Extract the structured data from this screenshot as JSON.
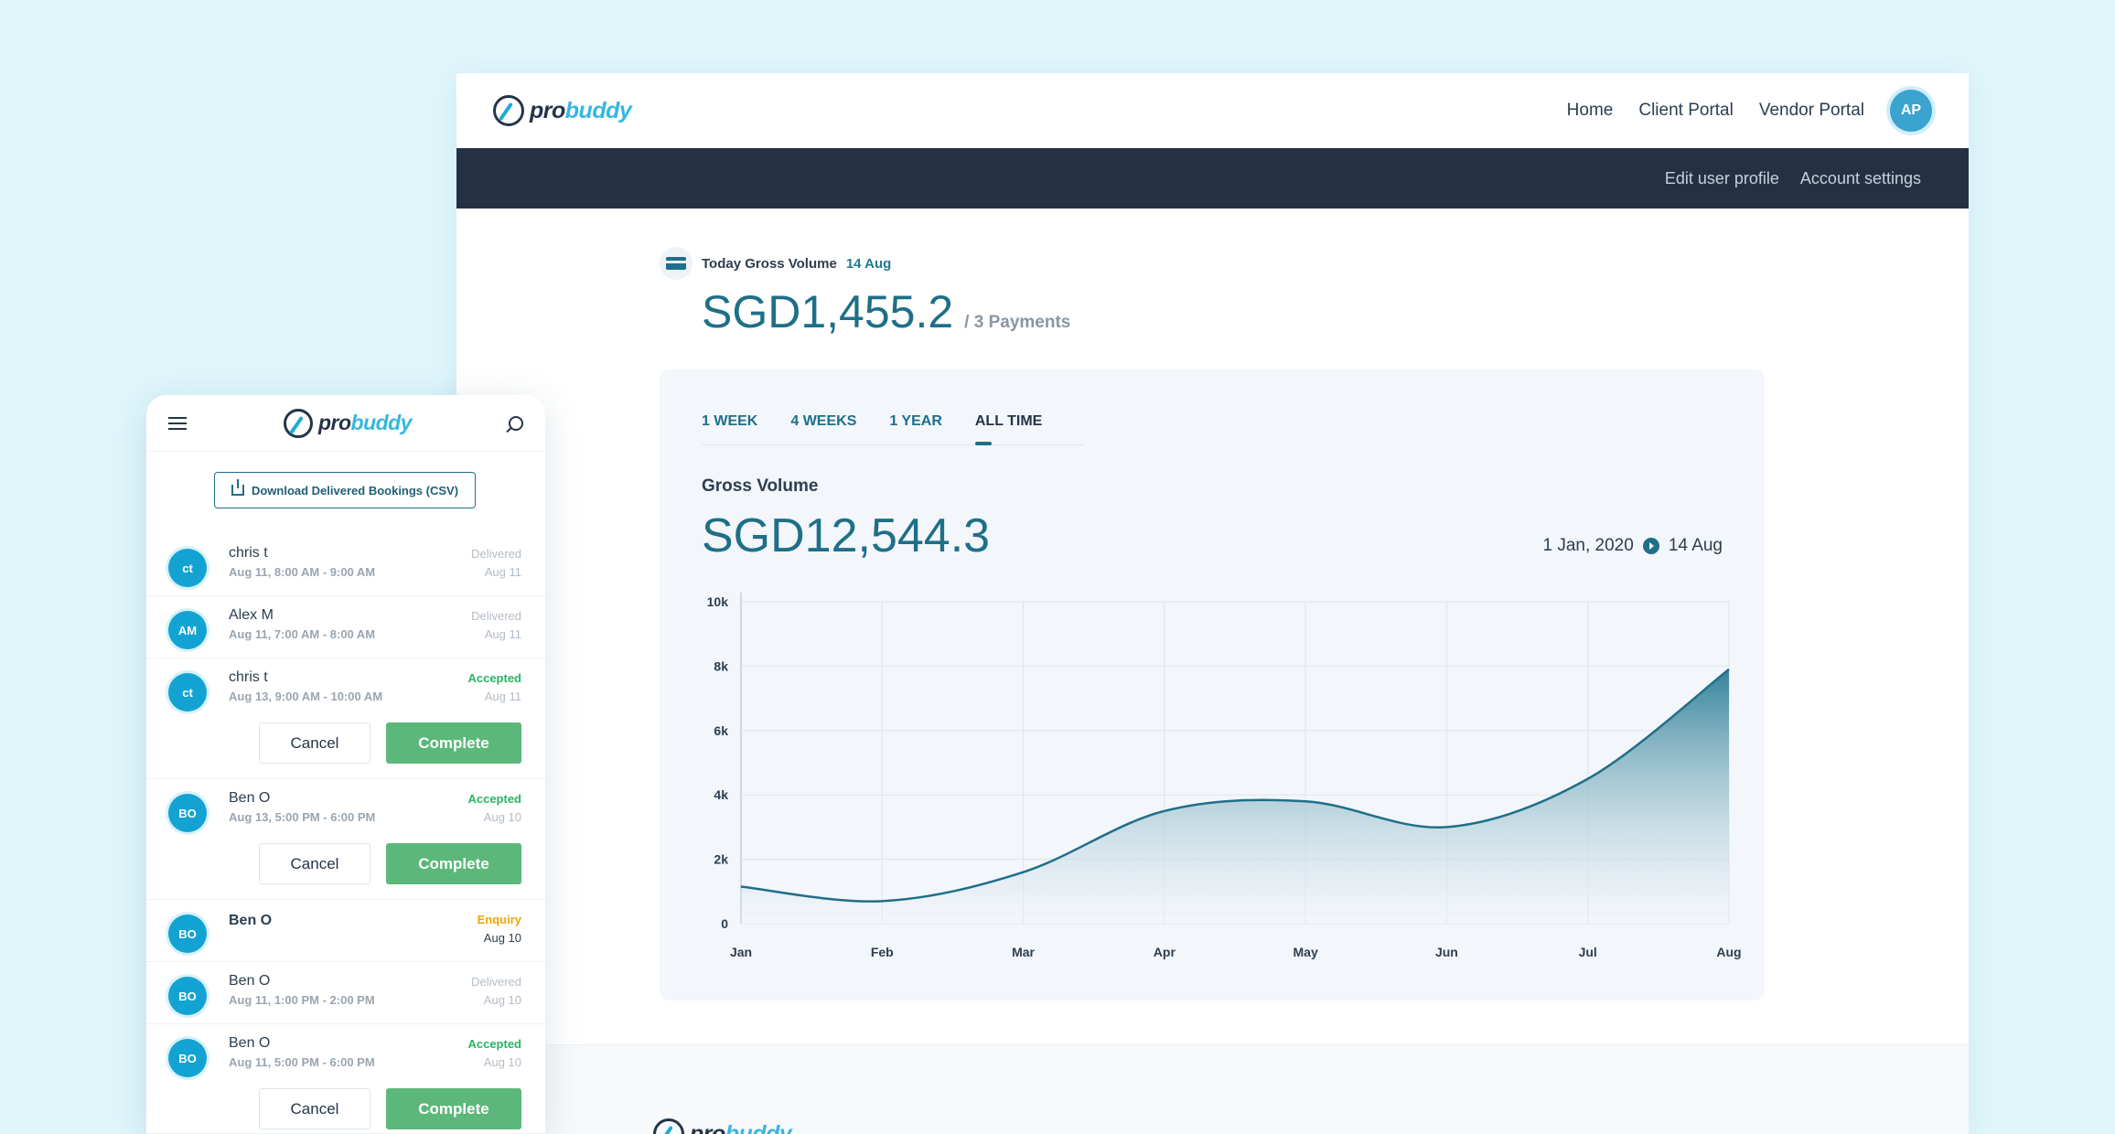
{
  "desktop": {
    "logo": {
      "pro": "pro",
      "buddy": "buddy"
    },
    "nav": {
      "home": "Home",
      "client_portal": "Client Portal",
      "vendor_portal": "Vendor Portal",
      "avatar_initials": "AP"
    },
    "subnav": {
      "edit_profile": "Edit user profile",
      "account_settings": "Account settings"
    },
    "today": {
      "label": "Today Gross Volume",
      "date": "14 Aug",
      "amount": "SGD1,455.2",
      "payments": "/ 3 Payments"
    },
    "tabs": [
      "1 WEEK",
      "4 WEEKS",
      "1 YEAR",
      "ALL TIME"
    ],
    "active_tab": "ALL TIME",
    "gross": {
      "label": "Gross Volume",
      "amount": "SGD12,544.3",
      "range_start": "1 Jan, 2020",
      "range_end": "14 Aug"
    }
  },
  "chart_data": {
    "type": "area",
    "categories": [
      "Jan",
      "Feb",
      "Mar",
      "Apr",
      "May",
      "Jun",
      "Jul",
      "Aug"
    ],
    "values": [
      1150,
      700,
      1600,
      3500,
      3800,
      3000,
      4500,
      7900
    ],
    "ylim": [
      0,
      10000
    ],
    "yticks": [
      0,
      2000,
      4000,
      6000,
      8000,
      10000
    ],
    "ytick_labels": [
      "0",
      "2k",
      "4k",
      "6k",
      "8k",
      "10k"
    ],
    "grid": true,
    "colors": {
      "line": "#1f6f8b",
      "fill_top": "#2a7d96",
      "fill_bottom": "#f3f6fa"
    }
  },
  "mobile": {
    "download_label": "Download Delivered Bookings (CSV)",
    "cancel_label": "Cancel",
    "complete_label": "Complete",
    "bookings": [
      {
        "initials": "ct",
        "name": "chris t",
        "time": "Aug 11, 8:00 AM - 9:00 AM",
        "status": "Delivered",
        "date": "Aug 11"
      },
      {
        "initials": "AM",
        "name": "Alex M",
        "time": "Aug 11, 7:00 AM - 8:00 AM",
        "status": "Delivered",
        "date": "Aug 11"
      },
      {
        "initials": "ct",
        "name": "chris t",
        "time": "Aug 13, 9:00 AM - 10:00 AM",
        "status": "Accepted",
        "date": "Aug 11"
      },
      {
        "initials": "BO",
        "name": "Ben O",
        "time": "Aug 13, 5:00 PM - 6:00 PM",
        "status": "Accepted",
        "date": "Aug 10"
      },
      {
        "initials": "BO",
        "name": "Ben O",
        "time": "",
        "status": "Enquiry",
        "date": "Aug 10"
      },
      {
        "initials": "BO",
        "name": "Ben O",
        "time": "Aug 11, 1:00 PM - 2:00 PM",
        "status": "Delivered",
        "date": "Aug 10"
      },
      {
        "initials": "BO",
        "name": "Ben O",
        "time": "Aug 11, 5:00 PM - 6:00 PM",
        "status": "Accepted",
        "date": "Aug 10"
      }
    ]
  }
}
